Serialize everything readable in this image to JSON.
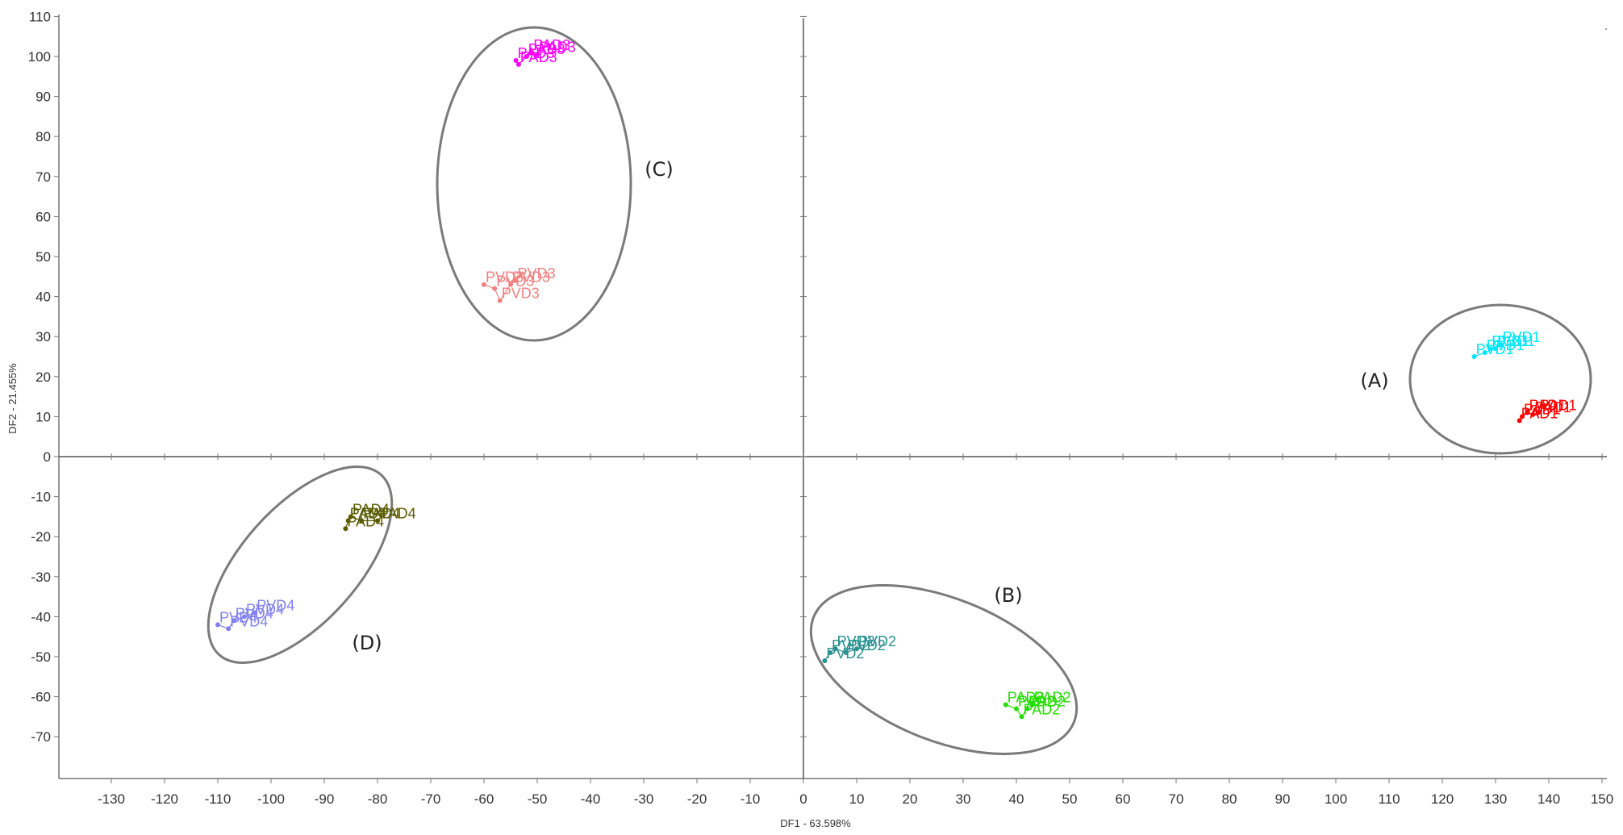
{
  "chart_data": {
    "type": "scatter",
    "title": "",
    "xlabel": "DF1 - 63.598%",
    "ylabel": "DF2 - 21.455%",
    "xlim": [
      -140,
      150
    ],
    "ylim": [
      -80,
      110
    ],
    "x_ticks": [
      -130,
      -120,
      -110,
      -100,
      -90,
      -80,
      -70,
      -60,
      -50,
      -40,
      -30,
      -20,
      -10,
      0,
      10,
      20,
      30,
      40,
      50,
      60,
      70,
      80,
      90,
      100,
      110,
      120,
      130,
      140,
      150
    ],
    "y_ticks": [
      -70,
      -60,
      -50,
      -40,
      -30,
      -20,
      -10,
      0,
      10,
      20,
      30,
      40,
      50,
      60,
      70,
      80,
      90,
      100,
      110
    ],
    "grid": false,
    "series": [
      {
        "name": "PVD1",
        "color": "#00e5ff",
        "points": [
          [
            126,
            25
          ],
          [
            128,
            26
          ],
          [
            130,
            27
          ],
          [
            131,
            28
          ],
          [
            129,
            27
          ]
        ]
      },
      {
        "name": "PAD1",
        "color": "#ff0000",
        "points": [
          [
            134.5,
            9
          ],
          [
            135,
            10
          ],
          [
            136,
            11
          ],
          [
            137,
            10.5
          ],
          [
            138,
            11
          ]
        ]
      },
      {
        "name": "PAD2",
        "color": "#22dd00",
        "points": [
          [
            38,
            -62
          ],
          [
            40,
            -63
          ],
          [
            41,
            -65
          ],
          [
            42,
            -63
          ],
          [
            43,
            -62
          ]
        ]
      },
      {
        "name": "PVD2",
        "color": "#2a9090",
        "points": [
          [
            4,
            -51
          ],
          [
            5,
            -49
          ],
          [
            6,
            -48
          ],
          [
            8,
            -49
          ],
          [
            10,
            -48
          ]
        ]
      },
      {
        "name": "PAD3",
        "color": "#ff00ff",
        "points": [
          [
            -54,
            99
          ],
          [
            -53.5,
            98
          ],
          [
            -52,
            100
          ],
          [
            -51,
            101
          ],
          [
            -50,
            100.5
          ]
        ]
      },
      {
        "name": "PVD3",
        "color": "#f08080",
        "points": [
          [
            -60,
            43
          ],
          [
            -58,
            42
          ],
          [
            -57,
            39
          ],
          [
            -55,
            43
          ],
          [
            -54,
            44
          ]
        ]
      },
      {
        "name": "PAD4",
        "color": "#5a5a00",
        "points": [
          [
            -86,
            -18
          ],
          [
            -85.5,
            -16
          ],
          [
            -85,
            -15
          ],
          [
            -83,
            -16
          ],
          [
            -80,
            -16
          ]
        ]
      },
      {
        "name": "PVD4",
        "color": "#8080f0",
        "points": [
          [
            -110,
            -42
          ],
          [
            -108,
            -43
          ],
          [
            -107,
            -41
          ],
          [
            -105,
            -40
          ],
          [
            -103,
            -39
          ]
        ]
      }
    ],
    "annotations": [
      "(A)",
      "(B)",
      "(C)",
      "(D)"
    ]
  }
}
